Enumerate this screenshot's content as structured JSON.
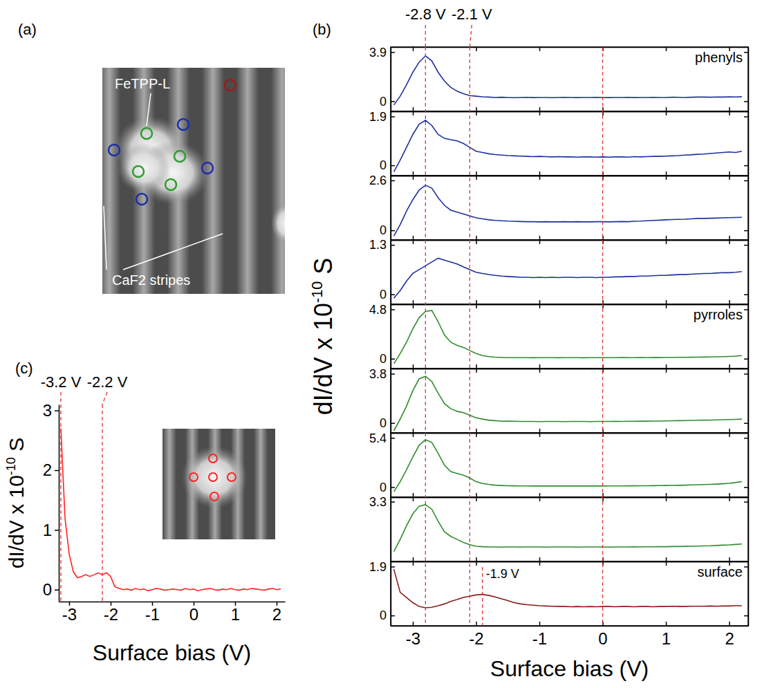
{
  "chart_data": [
    {
      "type": "image",
      "panel_label": "(a)",
      "annotations": [
        "FeTPP-L",
        "CaF2 stripes"
      ],
      "colors": [
        "#1c2ea8",
        "#2d9e2d",
        "#9e1b1b"
      ]
    },
    {
      "type": "line",
      "panel_label": "(b)",
      "x": [
        -3.3,
        -3.2,
        -3.1,
        -3.0,
        -2.9,
        -2.8,
        -2.7,
        -2.6,
        -2.5,
        -2.4,
        -2.3,
        -2.2,
        -2.1,
        -2.0,
        -1.9,
        -1.8,
        -1.7,
        -1.6,
        -1.5,
        -1.4,
        -1.3,
        -1.2,
        -1.1,
        -1.0,
        -0.9,
        -0.8,
        -0.7,
        -0.6,
        -0.5,
        -0.4,
        -0.3,
        -0.2,
        -0.1,
        0,
        0.1,
        0.2,
        0.3,
        0.4,
        0.5,
        0.6,
        0.7,
        0.8,
        0.9,
        1.0,
        1.1,
        1.2,
        1.3,
        1.4,
        1.5,
        1.6,
        1.7,
        1.8,
        1.9,
        2.0,
        2.1,
        2.2
      ],
      "xlim": [
        -3.35,
        2.3
      ],
      "xticks": [
        -3,
        -2,
        -1,
        0,
        1,
        2
      ],
      "xlabel": "Surface bias (V)",
      "ylabel": [
        "dI/dV x 10",
        "-10",
        " S"
      ],
      "vlines": [
        {
          "x": -2.8,
          "label": "-2.8 V"
        },
        {
          "x": -2.1,
          "label": "-2.1 V"
        },
        {
          "x": 0
        }
      ],
      "series": [
        {
          "name": "phenyls",
          "color": "#1f2f9f",
          "ylim": [
            -0.8,
            4.3
          ],
          "yticks": [
            0,
            3.9
          ],
          "values": [
            -0.3,
            0.4,
            1.3,
            2.3,
            3.1,
            3.6,
            3.2,
            2.3,
            1.6,
            1.1,
            0.8,
            0.6,
            0.45,
            0.4,
            0.35,
            0.33,
            0.3,
            0.32,
            0.3,
            0.28,
            0.3,
            0.31,
            0.29,
            0.3,
            0.3,
            0.28,
            0.3,
            0.31,
            0.3,
            0.29,
            0.3,
            0.3,
            0.31,
            0.3,
            0.29,
            0.3,
            0.3,
            0.31,
            0.29,
            0.3,
            0.3,
            0.31,
            0.3,
            0.3,
            0.32,
            0.31,
            0.3,
            0.32,
            0.33,
            0.33,
            0.32,
            0.34,
            0.33,
            0.35,
            0.34,
            0.36
          ]
        },
        {
          "color": "#1f2f9f",
          "ylim": [
            -0.4,
            2.1
          ],
          "yticks": [
            0,
            1.9
          ],
          "values": [
            -0.25,
            0.2,
            0.7,
            1.2,
            1.6,
            1.75,
            1.55,
            1.2,
            1.05,
            1.0,
            0.95,
            0.85,
            0.7,
            0.55,
            0.5,
            0.45,
            0.42,
            0.4,
            0.38,
            0.37,
            0.36,
            0.35,
            0.34,
            0.35,
            0.34,
            0.33,
            0.34,
            0.33,
            0.33,
            0.32,
            0.33,
            0.33,
            0.32,
            0.33,
            0.32,
            0.33,
            0.33,
            0.32,
            0.34,
            0.33,
            0.34,
            0.35,
            0.35,
            0.36,
            0.37,
            0.38,
            0.4,
            0.41,
            0.43,
            0.44,
            0.46,
            0.48,
            0.5,
            0.52,
            0.5,
            0.55
          ]
        },
        {
          "color": "#1f2f9f",
          "ylim": [
            -0.5,
            2.85
          ],
          "yticks": [
            0,
            2.6
          ],
          "values": [
            -0.3,
            0.3,
            1.0,
            1.6,
            2.1,
            2.35,
            2.2,
            1.7,
            1.3,
            1.05,
            0.95,
            0.85,
            0.75,
            0.65,
            0.6,
            0.55,
            0.52,
            0.5,
            0.48,
            0.47,
            0.46,
            0.45,
            0.45,
            0.44,
            0.45,
            0.44,
            0.44,
            0.45,
            0.44,
            0.45,
            0.44,
            0.44,
            0.45,
            0.45,
            0.44,
            0.45,
            0.46,
            0.45,
            0.47,
            0.48,
            0.5,
            0.52,
            0.53,
            0.55,
            0.56,
            0.57,
            0.58,
            0.6,
            0.62,
            0.62,
            0.63,
            0.64,
            0.65,
            0.66,
            0.67,
            0.68
          ]
        },
        {
          "color": "#1f2f9f",
          "ylim": [
            -0.26,
            1.43
          ],
          "yticks": [
            0,
            1.3
          ],
          "values": [
            -0.1,
            0.1,
            0.35,
            0.55,
            0.65,
            0.75,
            0.85,
            0.95,
            0.9,
            0.85,
            0.8,
            0.72,
            0.65,
            0.58,
            0.55,
            0.52,
            0.5,
            0.48,
            0.47,
            0.46,
            0.45,
            0.45,
            0.44,
            0.45,
            0.44,
            0.45,
            0.44,
            0.45,
            0.45,
            0.44,
            0.45,
            0.45,
            0.44,
            0.45,
            0.45,
            0.46,
            0.46,
            0.47,
            0.47,
            0.48,
            0.48,
            0.49,
            0.5,
            0.5,
            0.51,
            0.52,
            0.52,
            0.53,
            0.54,
            0.55,
            0.55,
            0.56,
            0.57,
            0.57,
            0.58,
            0.6
          ]
        },
        {
          "name": "pyrroles",
          "color": "#2e8b2e",
          "ylim": [
            -0.96,
            5.3
          ],
          "yticks": [
            0,
            4.8
          ],
          "values": [
            -0.5,
            0.5,
            1.6,
            2.9,
            4.0,
            4.6,
            4.7,
            3.6,
            2.3,
            1.6,
            1.3,
            1.1,
            0.8,
            0.5,
            0.3,
            0.2,
            0.15,
            0.12,
            0.1,
            0.1,
            0.1,
            0.1,
            0.09,
            0.1,
            0.1,
            0.1,
            0.09,
            0.1,
            0.1,
            0.1,
            0.09,
            0.1,
            0.1,
            0.1,
            0.1,
            0.1,
            0.11,
            0.1,
            0.1,
            0.11,
            0.1,
            0.11,
            0.11,
            0.12,
            0.12,
            0.13,
            0.13,
            0.14,
            0.15,
            0.16,
            0.17,
            0.18,
            0.2,
            0.22,
            0.25,
            0.3
          ]
        },
        {
          "color": "#2e8b2e",
          "ylim": [
            -0.76,
            4.2
          ],
          "yticks": [
            0,
            3.8
          ],
          "values": [
            -0.6,
            0.3,
            1.3,
            2.5,
            3.4,
            3.6,
            3.2,
            2.3,
            1.5,
            1.1,
            0.9,
            0.8,
            0.6,
            0.4,
            0.3,
            0.22,
            0.18,
            0.15,
            0.14,
            0.13,
            0.12,
            0.12,
            0.12,
            0.11,
            0.12,
            0.12,
            0.12,
            0.11,
            0.12,
            0.12,
            0.12,
            0.11,
            0.12,
            0.12,
            0.12,
            0.13,
            0.12,
            0.13,
            0.13,
            0.14,
            0.14,
            0.15,
            0.15,
            0.16,
            0.17,
            0.18,
            0.19,
            0.2,
            0.21,
            0.22,
            0.23,
            0.24,
            0.25,
            0.27,
            0.28,
            0.3
          ]
        },
        {
          "color": "#2e8b2e",
          "ylim": [
            -1.1,
            5.95
          ],
          "yticks": [
            0,
            5.4
          ],
          "values": [
            -0.5,
            0.6,
            1.9,
            3.3,
            4.6,
            5.2,
            4.9,
            3.7,
            2.4,
            1.7,
            1.5,
            1.3,
            1.0,
            0.6,
            0.4,
            0.3,
            0.22,
            0.18,
            0.15,
            0.14,
            0.13,
            0.13,
            0.12,
            0.13,
            0.12,
            0.12,
            0.13,
            0.12,
            0.12,
            0.12,
            0.13,
            0.12,
            0.12,
            0.12,
            0.13,
            0.13,
            0.13,
            0.14,
            0.14,
            0.15,
            0.15,
            0.16,
            0.17,
            0.18,
            0.19,
            0.2,
            0.22,
            0.24,
            0.26,
            0.28,
            0.3,
            0.33,
            0.37,
            0.42,
            0.5,
            0.6
          ]
        },
        {
          "color": "#2e8b2e",
          "ylim": [
            -0.66,
            3.6
          ],
          "yticks": [
            3.3
          ],
          "values": [
            0.0,
            0.8,
            1.7,
            2.5,
            3.0,
            3.1,
            2.8,
            2.0,
            1.3,
            1.0,
            0.8,
            0.6,
            0.45,
            0.35,
            0.32,
            0.3,
            0.3,
            0.29,
            0.3,
            0.3,
            0.29,
            0.3,
            0.3,
            0.3,
            0.29,
            0.3,
            0.3,
            0.3,
            0.3,
            0.29,
            0.3,
            0.3,
            0.3,
            0.3,
            0.29,
            0.3,
            0.3,
            0.3,
            0.31,
            0.3,
            0.31,
            0.31,
            0.32,
            0.32,
            0.33,
            0.33,
            0.34,
            0.35,
            0.36,
            0.37,
            0.38,
            0.4,
            0.42,
            0.44,
            0.47,
            0.5
          ]
        },
        {
          "name": "surface",
          "color": "#8b1a1a",
          "ylim": [
            -0.4,
            2.1
          ],
          "yticks": [
            0,
            1.9
          ],
          "vlines": [
            {
              "x": -1.9,
              "label": "-1.9 V"
            }
          ],
          "values": [
            1.8,
            0.9,
            0.7,
            0.5,
            0.35,
            0.3,
            0.32,
            0.38,
            0.45,
            0.55,
            0.62,
            0.7,
            0.75,
            0.8,
            0.82,
            0.78,
            0.72,
            0.65,
            0.58,
            0.5,
            0.45,
            0.42,
            0.4,
            0.38,
            0.37,
            0.36,
            0.35,
            0.35,
            0.34,
            0.35,
            0.34,
            0.35,
            0.34,
            0.35,
            0.35,
            0.34,
            0.35,
            0.35,
            0.34,
            0.35,
            0.35,
            0.34,
            0.35,
            0.35,
            0.36,
            0.35,
            0.35,
            0.36,
            0.36,
            0.36,
            0.37,
            0.36,
            0.37,
            0.37,
            0.38,
            0.38
          ]
        }
      ]
    },
    {
      "type": "line",
      "panel_label": "(c)",
      "color": "#ff2222",
      "x": [
        -3.2,
        -3.1,
        -3.0,
        -2.9,
        -2.8,
        -2.7,
        -2.6,
        -2.5,
        -2.4,
        -2.3,
        -2.2,
        -2.1,
        -2.0,
        -1.9,
        -1.8,
        -1.7,
        -1.6,
        -1.5,
        -1.4,
        -1.3,
        -1.2,
        -1.1,
        -1.0,
        -0.9,
        -0.8,
        -0.7,
        -0.6,
        -0.5,
        -0.4,
        -0.3,
        -0.2,
        -0.1,
        0,
        0.1,
        0.2,
        0.3,
        0.4,
        0.5,
        0.6,
        0.7,
        0.8,
        0.9,
        1.0,
        1.1,
        1.2,
        1.3,
        1.4,
        1.5,
        1.6,
        1.7,
        1.8,
        1.9,
        2.0,
        2.1
      ],
      "values": [
        2.7,
        1.2,
        0.6,
        0.3,
        0.2,
        0.22,
        0.25,
        0.22,
        0.25,
        0.28,
        0.25,
        0.28,
        0.22,
        0.05,
        0.02,
        0.0,
        0.01,
        -0.01,
        0.02,
        0.0,
        0.01,
        -0.02,
        0.0,
        0.02,
        0.01,
        -0.01,
        0.0,
        0.01,
        0.0,
        -0.01,
        0.02,
        0.0,
        0.01,
        -0.02,
        0.0,
        0.01,
        0.02,
        0.0,
        -0.01,
        0.01,
        0.0,
        0.02,
        0.0,
        -0.01,
        0.01,
        0.0,
        0.02,
        0.01,
        0.0,
        -0.01,
        0.01,
        0.02,
        0.0,
        0.01
      ],
      "xlim": [
        -3.25,
        2.2
      ],
      "ylim": [
        -0.2,
        3.1
      ],
      "xticks": [
        -3,
        -2,
        -1,
        0,
        1,
        2
      ],
      "yticks": [
        0,
        1,
        2,
        3
      ],
      "xlabel": "Surface bias (V)",
      "ylabel": [
        "dI/dV x 10",
        "-10",
        " S"
      ],
      "vlines": [
        {
          "x": -3.2,
          "label": "-3.2 V"
        },
        {
          "x": -2.2,
          "label": "-2.2 V"
        }
      ]
    }
  ]
}
